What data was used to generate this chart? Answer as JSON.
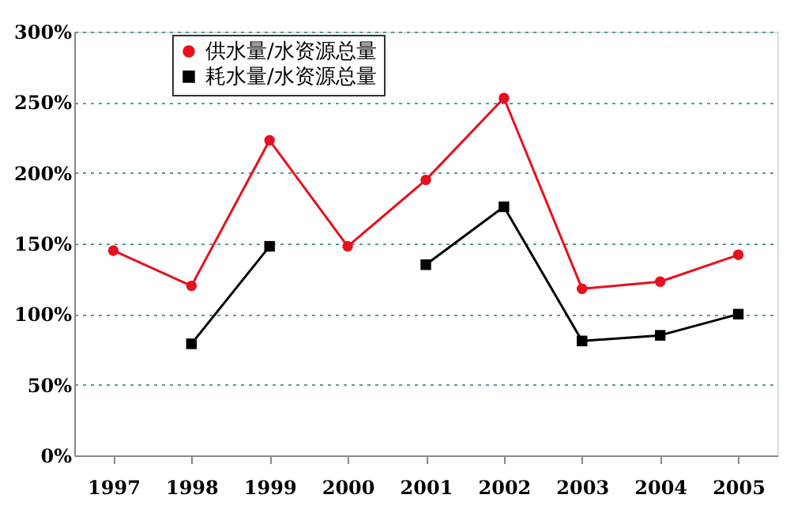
{
  "chart_data": {
    "type": "line",
    "categories": [
      "1997",
      "1998",
      "1999",
      "2000",
      "2001",
      "2002",
      "2003",
      "2004",
      "2005"
    ],
    "series": [
      {
        "name": "供水量/水资源总量",
        "color": "#e8101c",
        "marker": "circle",
        "values": [
          145,
          120,
          223,
          148,
          195,
          253,
          118,
          123,
          142
        ]
      },
      {
        "name": "耗水量/水资源总量",
        "color": "#000000",
        "marker": "square",
        "values": [
          null,
          79,
          148,
          null,
          135,
          176,
          81,
          85,
          100
        ]
      }
    ],
    "ylim": [
      0,
      300
    ],
    "yticks": [
      {
        "value": 0,
        "label": "0%"
      },
      {
        "value": 50,
        "label": "50%"
      },
      {
        "value": 100,
        "label": "100%"
      },
      {
        "value": 150,
        "label": "150%"
      },
      {
        "value": 200,
        "label": "200%"
      },
      {
        "value": 250,
        "label": "250%"
      },
      {
        "value": 300,
        "label": "300%"
      }
    ],
    "grid": "y",
    "legend": "top left",
    "line_style": "solid"
  }
}
